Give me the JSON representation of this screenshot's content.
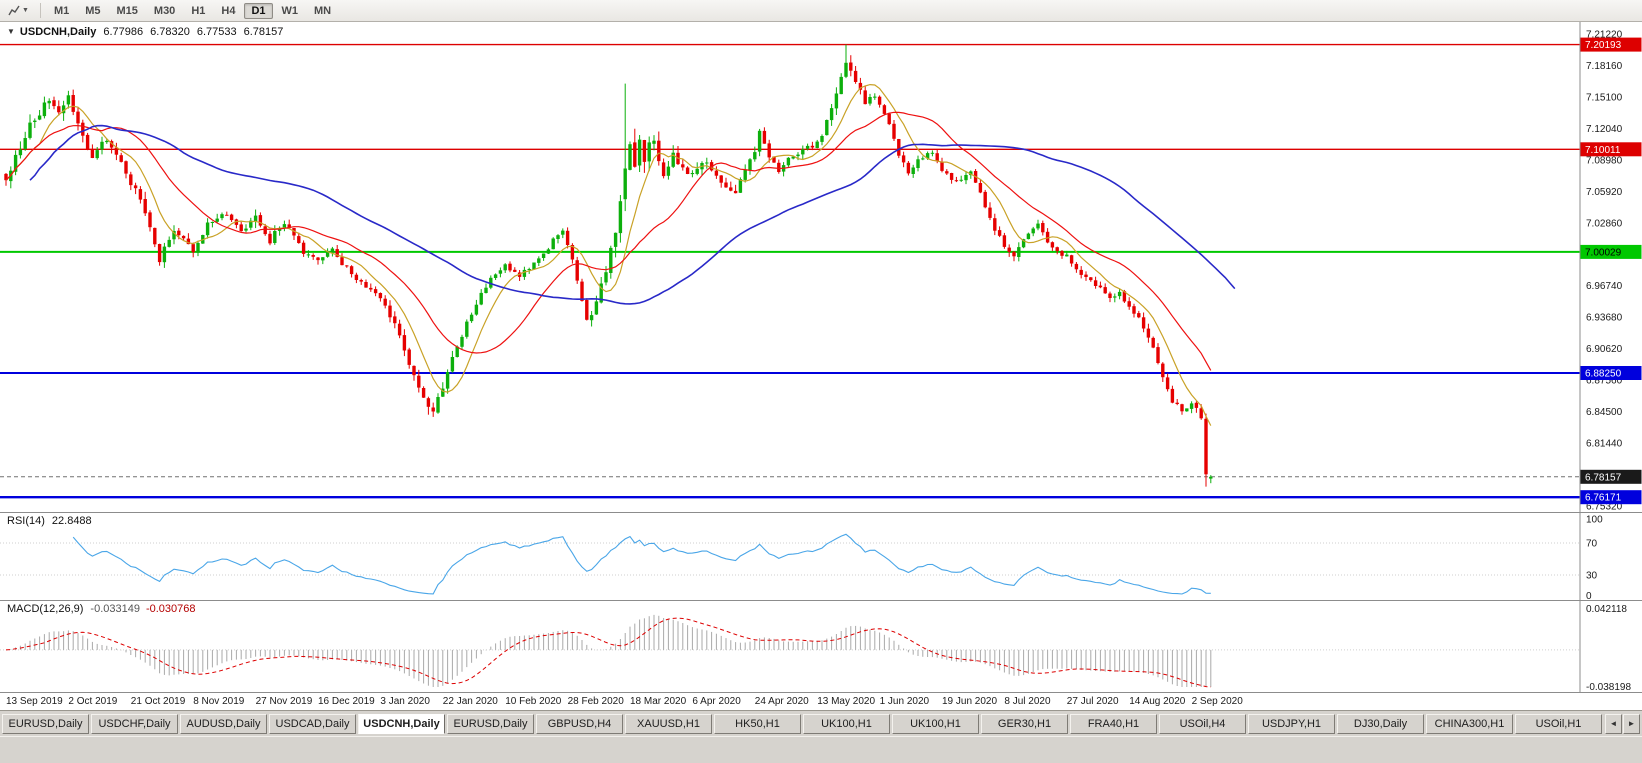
{
  "toolbar": {
    "timeframes": [
      "M1",
      "M5",
      "M15",
      "M30",
      "H1",
      "H4",
      "D1",
      "W1",
      "MN"
    ],
    "active_timeframe": "D1"
  },
  "main_chart": {
    "legend": {
      "expander": "▼",
      "symbol_period": "USDCNH,Daily",
      "open": "6.77986",
      "high": "6.78320",
      "low": "6.77533",
      "close": "6.78157"
    },
    "price_ticks": [
      "7.21220",
      "7.18160",
      "7.15100",
      "7.12040",
      "7.08980",
      "7.05920",
      "7.02860",
      "6.99800",
      "6.96740",
      "6.93680",
      "6.90620",
      "6.87560",
      "6.84500",
      "6.81440",
      "6.78380",
      "6.75320"
    ],
    "hline_tags": [
      {
        "text": "7.20193",
        "price": 7.20193,
        "color": "#dd0000",
        "text_color": "#ffffff",
        "line_width": 1.4
      },
      {
        "text": "7.10011",
        "price": 7.10011,
        "color": "#dd0000",
        "text_color": "#ffffff",
        "line_width": 1.4
      },
      {
        "text": "7.00029",
        "price": 7.00029,
        "color": "#00c800",
        "text_color": "#000000",
        "line_width": 2
      },
      {
        "text": "6.88250",
        "price": 6.8825,
        "color": "#0000dd",
        "text_color": "#ffffff",
        "line_width": 2
      },
      {
        "text": "6.76171",
        "price": 6.76171,
        "color": "#0000dd",
        "text_color": "#ffffff",
        "line_width": 2.4
      }
    ],
    "current_price_tag": {
      "text": "6.78157",
      "price": 6.78157,
      "color": "#1a1a1a",
      "text_color": "#ffffff",
      "line_width": 1
    }
  },
  "rsi_panel": {
    "legend_label": "RSI(14)",
    "legend_value": "22.8488",
    "axis_ticks": [
      {
        "text": "100",
        "value": 100
      },
      {
        "text": "70",
        "value": 70
      },
      {
        "text": "30",
        "value": 30
      },
      {
        "text": "0",
        "value": 0
      }
    ],
    "levels": [
      70,
      30
    ]
  },
  "macd_panel": {
    "legend_label": "MACD(12,26,9)",
    "legend_value_macd": "-0.033149",
    "legend_value_signal": "-0.030768",
    "axis_max": {
      "text": "0.042118",
      "value": 0.042118
    },
    "axis_min": {
      "text": "-0.038198",
      "value": -0.038198
    }
  },
  "date_axis": {
    "labels": [
      "13 Sep 2019",
      "2 Oct 2019",
      "21 Oct 2019",
      "8 Nov 2019",
      "27 Nov 2019",
      "16 Dec 2019",
      "3 Jan 2020",
      "22 Jan 2020",
      "10 Feb 2020",
      "28 Feb 2020",
      "18 Mar 2020",
      "6 Apr 2020",
      "24 Apr 2020",
      "13 May 2020",
      "1 Jun 2020",
      "19 Jun 2020",
      "8 Jul 2020",
      "27 Jul 2020",
      "14 Aug 2020",
      "2 Sep 2020"
    ]
  },
  "tab_bar": {
    "tabs": [
      "EURUSD,Daily",
      "USDCHF,Daily",
      "AUDUSD,Daily",
      "USDCAD,Daily",
      "USDCNH,Daily",
      "EURUSD,Daily",
      "GBPUSD,H4",
      "XAUUSD,H1",
      "HK50,H1",
      "UK100,H1",
      "UK100,H1",
      "GER30,H1",
      "FRA40,H1",
      "USOil,H4",
      "USDJPY,H1",
      "DJ30,Daily",
      "CHINA300,H1",
      "USOil,H1"
    ],
    "active_index": 4,
    "scroll_left": "◄",
    "scroll_right": "►"
  },
  "chart_data": {
    "type": "candlestick",
    "symbol": "USDCNH",
    "period": "Daily",
    "bars": 252,
    "price_axis_range": [
      6.74734,
      7.22387
    ],
    "last_bar_ohlc": {
      "open": 6.77986,
      "high": 6.7832,
      "low": 6.77533,
      "close": 6.78157
    },
    "prev_bar_ohlc": {
      "open": 6.838,
      "high": 6.843,
      "low": 6.772,
      "close": 6.784
    },
    "horizontal_lines": [
      7.20193,
      7.10011,
      7.00029,
      6.8825,
      6.76171
    ],
    "close_path_anchors": [
      [
        0,
        7.075
      ],
      [
        3,
        7.105
      ],
      [
        6,
        7.13
      ],
      [
        9,
        7.15
      ],
      [
        11,
        7.135
      ],
      [
        13,
        7.148
      ],
      [
        16,
        7.115
      ],
      [
        18,
        7.09
      ],
      [
        21,
        7.112
      ],
      [
        24,
        7.085
      ],
      [
        26,
        7.068
      ],
      [
        29,
        7.04
      ],
      [
        32,
        6.995
      ],
      [
        35,
        7.018
      ],
      [
        39,
        7.002
      ],
      [
        42,
        7.028
      ],
      [
        46,
        7.038
      ],
      [
        49,
        7.02
      ],
      [
        52,
        7.035
      ],
      [
        55,
        7.012
      ],
      [
        58,
        7.028
      ],
      [
        62,
        7.0
      ],
      [
        65,
        6.99
      ],
      [
        68,
        7.002
      ],
      [
        72,
        6.978
      ],
      [
        75,
        6.968
      ],
      [
        78,
        6.956
      ],
      [
        81,
        6.93
      ],
      [
        84,
        6.888
      ],
      [
        87,
        6.855
      ],
      [
        89,
        6.846
      ],
      [
        91,
        6.872
      ],
      [
        93,
        6.9
      ],
      [
        96,
        6.932
      ],
      [
        99,
        6.962
      ],
      [
        102,
        6.978
      ],
      [
        104,
        6.986
      ],
      [
        107,
        6.978
      ],
      [
        110,
        6.99
      ],
      [
        113,
        7.005
      ],
      [
        116,
        7.022
      ],
      [
        118,
        6.995
      ],
      [
        120,
        6.955
      ],
      [
        121,
        6.934
      ],
      [
        123,
        6.952
      ],
      [
        125,
        6.982
      ],
      [
        127,
        7.02
      ],
      [
        129,
        7.09
      ],
      [
        130,
        7.112
      ],
      [
        131,
        7.085
      ],
      [
        132,
        7.118
      ],
      [
        133,
        7.092
      ],
      [
        135,
        7.11
      ],
      [
        137,
        7.078
      ],
      [
        139,
        7.095
      ],
      [
        141,
        7.086
      ],
      [
        143,
        7.075
      ],
      [
        146,
        7.09
      ],
      [
        149,
        7.068
      ],
      [
        152,
        7.058
      ],
      [
        154,
        7.08
      ],
      [
        156,
        7.098
      ],
      [
        157,
        7.115
      ],
      [
        159,
        7.095
      ],
      [
        161,
        7.078
      ],
      [
        163,
        7.092
      ],
      [
        166,
        7.1
      ],
      [
        169,
        7.108
      ],
      [
        171,
        7.125
      ],
      [
        173,
        7.155
      ],
      [
        175,
        7.188
      ],
      [
        177,
        7.168
      ],
      [
        179,
        7.142
      ],
      [
        181,
        7.155
      ],
      [
        183,
        7.135
      ],
      [
        186,
        7.095
      ],
      [
        188,
        7.078
      ],
      [
        190,
        7.088
      ],
      [
        193,
        7.098
      ],
      [
        195,
        7.078
      ],
      [
        198,
        7.068
      ],
      [
        201,
        7.076
      ],
      [
        203,
        7.06
      ],
      [
        205,
        7.032
      ],
      [
        208,
        7.006
      ],
      [
        210,
        6.996
      ],
      [
        212,
        7.012
      ],
      [
        215,
        7.026
      ],
      [
        218,
        7.002
      ],
      [
        221,
        6.996
      ],
      [
        224,
        6.976
      ],
      [
        227,
        6.968
      ],
      [
        230,
        6.956
      ],
      [
        232,
        6.962
      ],
      [
        234,
        6.944
      ],
      [
        236,
        6.934
      ],
      [
        239,
        6.906
      ],
      [
        241,
        6.876
      ],
      [
        243,
        6.856
      ],
      [
        245,
        6.846
      ],
      [
        247,
        6.852
      ],
      [
        248,
        6.846
      ],
      [
        249,
        6.84
      ],
      [
        250,
        6.784
      ],
      [
        251,
        6.78157
      ]
    ],
    "volatility_anchors": [
      [
        0,
        0.013
      ],
      [
        8,
        0.012
      ],
      [
        16,
        0.01
      ],
      [
        24,
        0.009
      ],
      [
        32,
        0.011
      ],
      [
        40,
        0.007
      ],
      [
        48,
        0.007
      ],
      [
        52,
        0.011
      ],
      [
        58,
        0.007
      ],
      [
        70,
        0.006
      ],
      [
        78,
        0.007
      ],
      [
        84,
        0.011
      ],
      [
        90,
        0.011
      ],
      [
        97,
        0.007
      ],
      [
        106,
        0.006
      ],
      [
        114,
        0.006
      ],
      [
        120,
        0.01
      ],
      [
        126,
        0.012
      ],
      [
        129,
        0.02
      ],
      [
        132,
        0.019
      ],
      [
        136,
        0.013
      ],
      [
        142,
        0.01
      ],
      [
        150,
        0.008
      ],
      [
        156,
        0.011
      ],
      [
        163,
        0.007
      ],
      [
        170,
        0.008
      ],
      [
        175,
        0.011
      ],
      [
        182,
        0.008
      ],
      [
        190,
        0.006
      ],
      [
        198,
        0.006
      ],
      [
        205,
        0.008
      ],
      [
        210,
        0.007
      ],
      [
        218,
        0.006
      ],
      [
        226,
        0.006
      ],
      [
        234,
        0.007
      ],
      [
        241,
        0.007
      ],
      [
        246,
        0.005
      ],
      [
        249,
        0.009
      ],
      [
        251,
        0.003
      ]
    ],
    "moving_averages": [
      {
        "name": "ma-fast",
        "period": 8,
        "color": "#c9a227",
        "width": 1.2,
        "shift": 0
      },
      {
        "name": "ma-mid",
        "period": 21,
        "color": "#ee1111",
        "width": 1.2,
        "shift": 0
      },
      {
        "name": "ma-slow",
        "period": 55,
        "color": "#2929c8",
        "width": 1.6,
        "shift": 5
      }
    ],
    "rsi": {
      "period": 14,
      "last_value": 22.8488,
      "color": "#4aa6e8",
      "range": [
        0,
        100
      ],
      "levels": [
        70,
        30
      ]
    },
    "macd": {
      "fast": 12,
      "slow": 26,
      "signal_period": 9,
      "last_macd": -0.033149,
      "last_signal": -0.030768,
      "axis_range": [
        -0.038198,
        0.042118
      ],
      "histogram_color": "#a9a9a9",
      "signal_color": "#dd0000"
    }
  },
  "colors": {
    "bull": "#0caf0c",
    "bear": "#e60000",
    "background": "#ffffff",
    "panel_border": "#8c8c8c"
  }
}
